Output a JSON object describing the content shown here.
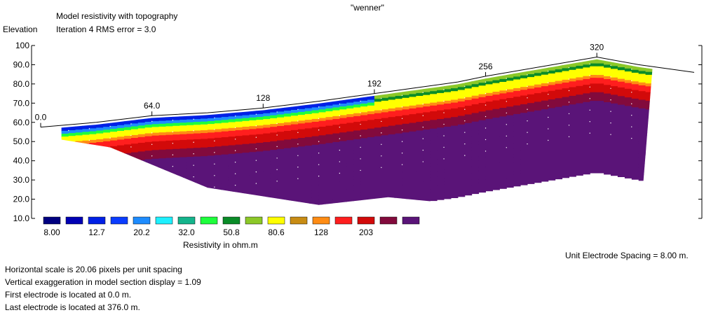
{
  "header": {
    "array_name": "\"wenner\"",
    "model_title": "Model resistivity with topography",
    "iteration_line": "Iteration 4 RMS error = 3.0",
    "elevation_label": "Elevation"
  },
  "chart_data": {
    "type": "heatmap",
    "title": "Model resistivity with topography",
    "subtitle": "Iteration 4 RMS error = 3.0",
    "ylabel": "Elevation",
    "ylim": [
      10,
      100
    ],
    "y_ticks": [
      "10.0",
      "20.0",
      "30.0",
      "40.0",
      "50.0",
      "60.0",
      "70.0",
      "80.0",
      "90.0",
      "100"
    ],
    "xlim": [
      0,
      376
    ],
    "x_tick_values": [
      0,
      64,
      128,
      192,
      256,
      320
    ],
    "x_tick_labels": [
      "0.0",
      "64.0",
      "128",
      "192",
      "256",
      "320"
    ],
    "topography": [
      [
        0,
        57.5
      ],
      [
        32,
        60
      ],
      [
        64,
        63.5
      ],
      [
        96,
        65
      ],
      [
        128,
        67.5
      ],
      [
        160,
        71
      ],
      [
        192,
        75
      ],
      [
        216,
        78
      ],
      [
        240,
        81
      ],
      [
        256,
        84
      ],
      [
        288,
        89
      ],
      [
        320,
        94
      ],
      [
        344,
        90
      ],
      [
        376,
        86
      ]
    ],
    "legend": {
      "title": "Resistivity in ohm.m",
      "colors": [
        "#000080",
        "#0000b4",
        "#0020e6",
        "#0a3cff",
        "#1e8cff",
        "#1ef0ff",
        "#14b48c",
        "#1eff3c",
        "#0a8c28",
        "#8cc828",
        "#ffff00",
        "#c88c14",
        "#ff8c14",
        "#ff1e1e",
        "#d20a0a",
        "#820a3c",
        "#5a1478"
      ],
      "labels": [
        "8.00",
        "12.7",
        "20.2",
        "32.0",
        "50.8",
        "80.6",
        "128",
        "203"
      ]
    }
  },
  "footer": {
    "unit_spacing": "Unit Electrode Spacing = 8.00 m.",
    "lines": [
      "Horizontal scale is 20.06 pixels per unit spacing",
      "Vertical exaggeration in model section display = 1.09",
      "First electrode is located at 0.0  m.",
      "Last electrode is located at 376.0 m."
    ]
  }
}
